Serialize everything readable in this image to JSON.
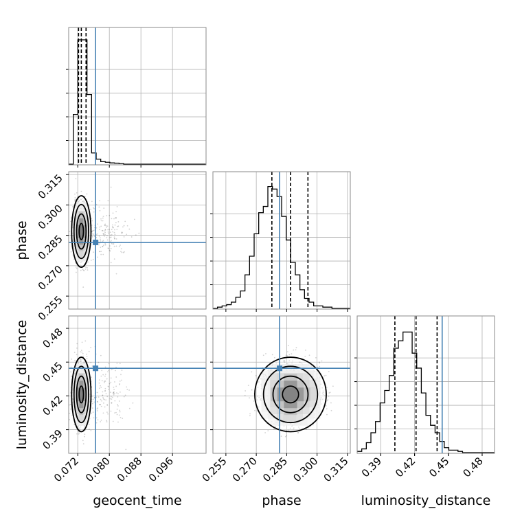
{
  "chart_data": {
    "type": "corner",
    "parameters": [
      "geocent_time",
      "phase",
      "luminosity_distance"
    ],
    "truths": [
      0.0765,
      0.2815,
      0.4445
    ],
    "truth_color": "#4682b4",
    "quantiles": {
      "geocent_time": [
        0.0722,
        0.0729,
        0.0741
      ],
      "phase": [
        0.2777,
        0.2869,
        0.2955
      ],
      "luminosity_distance": [
        0.4025,
        0.4213,
        0.44
      ]
    },
    "ranges": {
      "geocent_time": [
        0.0697,
        0.1045
      ],
      "phase": [
        0.2486,
        0.3164
      ],
      "luminosity_distance": [
        0.369,
        0.491
      ]
    },
    "ticks": {
      "geocent_time": [
        "0.072",
        "0.080",
        "0.088",
        "0.096"
      ],
      "phase": [
        "0.255",
        "0.270",
        "0.285",
        "0.300",
        "0.315"
      ],
      "luminosity_distance": [
        "0.39",
        "0.42",
        "0.45",
        "0.48"
      ]
    },
    "histograms": {
      "geocent_time": {
        "edges_start": 0.0697,
        "bin_width": 0.00116,
        "counts": [
          0,
          0.4,
          1.0,
          1.0,
          0.56,
          0.09,
          0.04,
          0.02,
          0.015,
          0.01,
          0.008,
          0.005,
          0,
          0,
          0,
          0,
          0,
          0,
          0,
          0,
          0,
          0,
          0,
          0,
          0,
          0,
          0,
          0,
          0,
          0
        ]
      },
      "phase": {
        "edges_start": 0.2486,
        "bin_width": 0.00226,
        "counts": [
          0,
          0.01,
          0.02,
          0.03,
          0.05,
          0.09,
          0.14,
          0.27,
          0.42,
          0.6,
          0.77,
          0.82,
          0.98,
          0.96,
          0.9,
          0.74,
          0.55,
          0.37,
          0.27,
          0.15,
          0.08,
          0.05,
          0.02,
          0.02,
          0.01,
          0.01,
          0,
          0,
          0,
          0
        ]
      },
      "luminosity_distance": {
        "edges_start": 0.369,
        "bin_width": 0.00407,
        "counts": [
          0.01,
          0.03,
          0.08,
          0.16,
          0.25,
          0.4,
          0.5,
          0.62,
          0.84,
          0.9,
          0.97,
          0.97,
          0.8,
          0.68,
          0.48,
          0.3,
          0.22,
          0.16,
          0.09,
          0.04,
          0.02,
          0.02,
          0.01,
          0,
          0,
          0,
          0,
          0,
          0,
          0
        ]
      }
    },
    "grid": true
  }
}
